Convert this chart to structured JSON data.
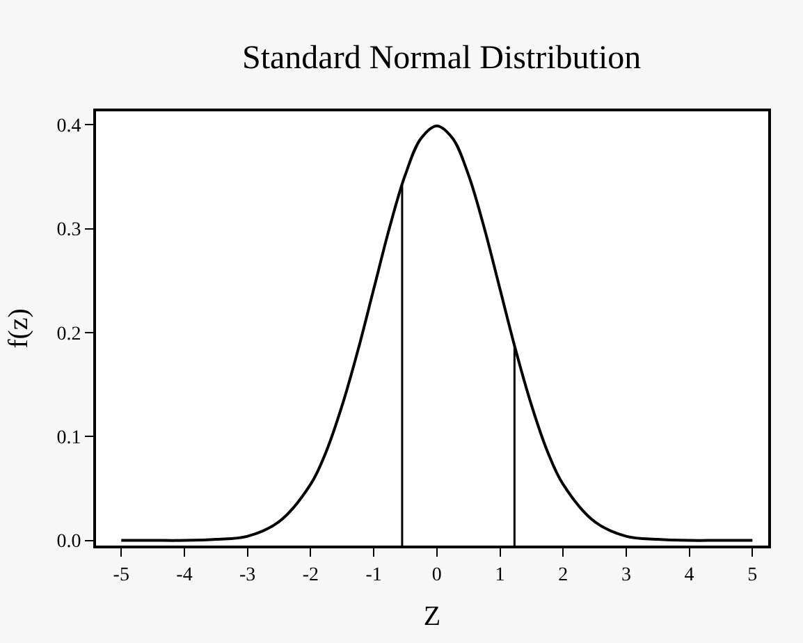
{
  "chart_data": {
    "type": "line",
    "title": "Standard Normal Distribution",
    "xlabel": "Z",
    "ylabel": "f(z)",
    "x": [
      -5,
      -4.5,
      -4,
      -3.5,
      -3,
      -2.5,
      -2,
      -1.75,
      -1.5,
      -1.25,
      -1,
      -0.75,
      -0.5,
      -0.25,
      0,
      0.25,
      0.5,
      0.75,
      1,
      1.25,
      1.5,
      1.75,
      2,
      2.5,
      3,
      3.5,
      4,
      4.5,
      5
    ],
    "series": [
      {
        "color": "#000000",
        "values": [
          0.0,
          0.0,
          0.0,
          0.001,
          0.004,
          0.018,
          0.054,
          0.086,
          0.13,
          0.183,
          0.242,
          0.301,
          0.352,
          0.387,
          0.399,
          0.387,
          0.352,
          0.301,
          0.242,
          0.183,
          0.13,
          0.086,
          0.054,
          0.018,
          0.004,
          0.001,
          0.0,
          0.0,
          0.0
        ]
      }
    ],
    "xlim": [
      -5.4,
      5.25
    ],
    "ylim": [
      -0.005,
      0.413
    ],
    "xticks": [
      -5,
      -4,
      -3,
      -2,
      -1,
      0,
      1,
      2,
      3,
      4,
      5
    ],
    "yticks": [
      {
        "value": 0,
        "label": "0.0"
      },
      0.1,
      0.2,
      0.3,
      0.4
    ],
    "ref_lines": [
      {
        "axis": "x",
        "value": -0.55,
        "color": "#000000"
      },
      {
        "axis": "x",
        "value": 1.23,
        "color": "#000000"
      }
    ],
    "marker": "none",
    "line_style": "solid"
  }
}
